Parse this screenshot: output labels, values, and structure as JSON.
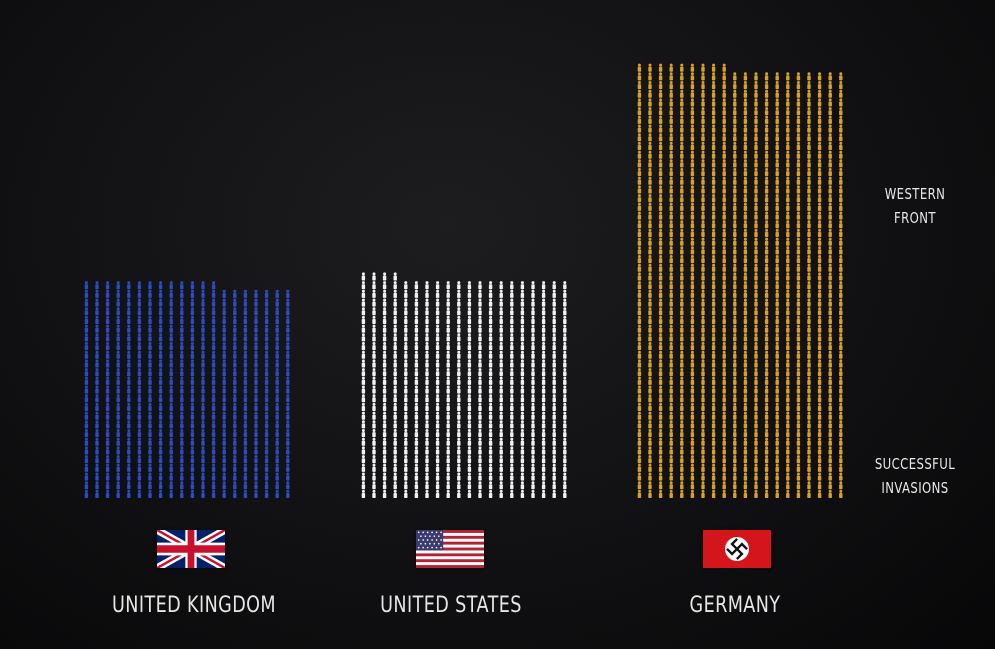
{
  "chart_data": {
    "type": "pictogram",
    "series": [
      {
        "name": "UNITED KINGDOM",
        "count": 493,
        "color": "#2a4cc4",
        "flag_icon": "uk-flag-icon"
      },
      {
        "name": "UNITED STATES",
        "count": 504,
        "color": "#f2f2f2",
        "flag_icon": "us-flag-icon"
      },
      {
        "name": "GERMANY",
        "count": 989,
        "color": "#d9a12b",
        "flag_icon": "germany-flag-icon"
      }
    ],
    "annotations": {
      "top": "WESTERN\nFRONT",
      "bottom": "SUCCESSFUL\nINVASIONS"
    }
  }
}
